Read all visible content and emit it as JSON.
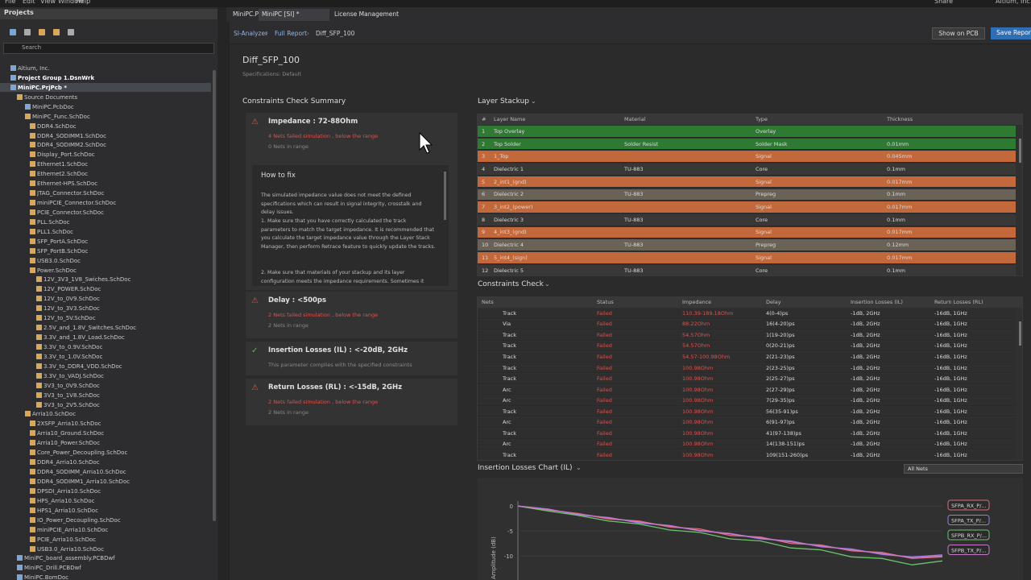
{
  "menu": [
    "File",
    "Edit",
    "View",
    "Window",
    "Help"
  ],
  "top_right": {
    "share": "Share",
    "account": "Altium, Inc."
  },
  "projects": {
    "title": "Projects",
    "search": "Search",
    "tree": [
      {
        "label": "Altium, Inc.",
        "level": 0
      },
      {
        "label": "Project Group 1.DsnWrk",
        "level": 0,
        "bold": true
      },
      {
        "label": "MiniPC.PrjPcb *",
        "level": 1,
        "bold": true,
        "selected": true
      },
      {
        "label": "Source Documents",
        "level": 2
      },
      {
        "label": "MiniPC.PcbDoc",
        "level": 3
      },
      {
        "label": "MiniPC_Func.SchDoc",
        "level": 3
      },
      {
        "label": "DDR4.SchDoc",
        "level": 4
      },
      {
        "label": "DDR4_SODIMM1.SchDoc",
        "level": 4
      },
      {
        "label": "DDR4_SODIMM2.SchDoc",
        "level": 4
      },
      {
        "label": "Display_Port.SchDoc",
        "level": 4
      },
      {
        "label": "Ethernet1.SchDoc",
        "level": 4
      },
      {
        "label": "Ethernet2.SchDoc",
        "level": 4
      },
      {
        "label": "Ethernet-HPS.SchDoc",
        "level": 4
      },
      {
        "label": "JTAG_Connector.SchDoc",
        "level": 4
      },
      {
        "label": "miniPCIE_Connector.SchDoc",
        "level": 4
      },
      {
        "label": "PCIE_Connector.SchDoc",
        "level": 4
      },
      {
        "label": "PLL.SchDoc",
        "level": 4
      },
      {
        "label": "PLL1.SchDoc",
        "level": 4
      },
      {
        "label": "SFP_PortA.SchDoc",
        "level": 4
      },
      {
        "label": "SFP_PortB.SchDoc",
        "level": 4
      },
      {
        "label": "USB3.0.SchDoc",
        "level": 4
      },
      {
        "label": "Power.SchDoc",
        "level": 4
      },
      {
        "label": "12V_3V3_1V8_Swiches.SchDoc",
        "level": 5
      },
      {
        "label": "12V_POWER.SchDoc",
        "level": 5
      },
      {
        "label": "12V_to_0V9.SchDoc",
        "level": 5
      },
      {
        "label": "12V_to_3V3.SchDoc",
        "level": 5
      },
      {
        "label": "12V_to_5V.SchDoc",
        "level": 5
      },
      {
        "label": "2.5V_and_1.8V_Switches.SchDoc",
        "level": 5
      },
      {
        "label": "3.3V_and_1.8V_Load.SchDoc",
        "level": 5
      },
      {
        "label": "3.3V_to_0.9V.SchDoc",
        "level": 5
      },
      {
        "label": "3.3V_to_1.0V.SchDoc",
        "level": 5
      },
      {
        "label": "3.3V_to_DDR4_VDD.SchDoc",
        "level": 5
      },
      {
        "label": "3.3V_to_VADJ.SchDoc",
        "level": 5
      },
      {
        "label": "3V3_to_0V9.SchDoc",
        "level": 5
      },
      {
        "label": "3V3_to_1V8.SchDoc",
        "level": 5
      },
      {
        "label": "3V3_to_2V5.SchDoc",
        "level": 5
      },
      {
        "label": "Arria10.SchDoc",
        "level": 3
      },
      {
        "label": "2XSFP_Arria10.SchDoc",
        "level": 4
      },
      {
        "label": "Arria10_Ground.SchDoc",
        "level": 4
      },
      {
        "label": "Arria10_Power.SchDoc",
        "level": 4
      },
      {
        "label": "Core_Power_Decoupling.SchDoc",
        "level": 4
      },
      {
        "label": "DDR4_Arria10.SchDoc",
        "level": 4
      },
      {
        "label": "DDR4_SODIMM_Arria10.SchDoc",
        "level": 4
      },
      {
        "label": "DDR4_SODIMM1_Arria10.SchDoc",
        "level": 4
      },
      {
        "label": "DPSDI_Arria10.SchDoc",
        "level": 4
      },
      {
        "label": "HPS_Arria10.SchDoc",
        "level": 4
      },
      {
        "label": "HPS1_Arria10.SchDoc",
        "level": 4
      },
      {
        "label": "IO_Power_Decoupling.SchDoc",
        "level": 4
      },
      {
        "label": "miniPCIE_Arria10.SchDoc",
        "level": 4
      },
      {
        "label": "PCIE_Arria10.SchDoc",
        "level": 4
      },
      {
        "label": "USB3.0_Arria10.SchDoc",
        "level": 4
      },
      {
        "label": "MiniPC_board_assembly.PCBDwf",
        "level": 2
      },
      {
        "label": "MiniPC_Drill.PCBDwf",
        "level": 2
      },
      {
        "label": "MiniPC.BomDoc",
        "level": 2
      }
    ]
  },
  "tabs": [
    "MiniPC.PcbDoc",
    "MiniPC [SI] *",
    "License Management"
  ],
  "breadcrumb": [
    "SI-Analyzer",
    "Full Report",
    "Diff_SFP_100"
  ],
  "buttons": {
    "show": "Show on PCB",
    "save": "Save Report"
  },
  "report": {
    "title": "Diff_SFP_100",
    "spec": "Specifications: Default"
  },
  "summary": {
    "title": "Constraints Check Summary",
    "items": [
      {
        "name": "Impedance : 72-88Ohm",
        "ok": false,
        "lines": [
          "4 Nets failed simulation , below the range",
          "0 Nets in range"
        ]
      },
      {
        "name": "Delay : <500ps",
        "ok": false,
        "lines": [
          "2 Nets failed simulation , below the range",
          "2 Nets in range"
        ]
      },
      {
        "name": "Insertion Losses (IL) : <-20dB, 2GHz",
        "ok": true,
        "lines": [
          "This parameter complies with the specified constraints"
        ]
      },
      {
        "name": "Return Losses (RL) : <-15dB, 2GHz",
        "ok": false,
        "lines": [
          "2 Nets failed simulation , below the range",
          "2 Nets in range"
        ]
      }
    ],
    "how_to_fix": {
      "title": "How to fix",
      "paragraphs": [
        "The simulated impedance value does not meet the defined specifications which can result in signal integrity, crosstalk and delay issues.",
        "1. Make sure that you have correctly calculated the track parameters to match the target impedance. It is recommended that you calculate the target impedance value through the Layer Stack Manager, then perform Retrace feature to quickly update the tracks.",
        "2. Make sure that materials of your stackup and its layer configuration meets the impedance requirements. Sometimes it"
      ]
    }
  },
  "layer_stackup": {
    "title": "Layer Stackup",
    "columns": [
      "#",
      "Layer Name",
      "Material",
      "Type",
      "Thickness"
    ],
    "rows": [
      [
        "1",
        "Top Overlay",
        null,
        "Overlay",
        null
      ],
      [
        "2",
        "Top Solder",
        "Solder Resist",
        "Solder Mask",
        "0.01mm"
      ],
      [
        "3",
        "1_Top",
        null,
        "Signal",
        "0.045mm"
      ],
      [
        "4",
        "Dielectric 1",
        "TU-883",
        "Core",
        "0.1mm"
      ],
      [
        "5",
        "2_int1_(gnd)",
        null,
        "Signal",
        "0.017mm"
      ],
      [
        "6",
        "Dielectric 2",
        "TU-883",
        "Prepreg",
        "0.1mm"
      ],
      [
        "7",
        "3_int2_(power)",
        null,
        "Signal",
        "0.017mm"
      ],
      [
        "8",
        "Dielectric 3",
        "TU-883",
        "Core",
        "0.1mm"
      ],
      [
        "9",
        "4_int3_(gnd)",
        null,
        "Signal",
        "0.017mm"
      ],
      [
        "10",
        "Dielectric 4",
        "TU-883",
        "Prepreg",
        "0.12mm"
      ],
      [
        "11",
        "5_int4_(sign)",
        null,
        "Signal",
        "0.017mm"
      ],
      [
        "12",
        "Dielectric 5",
        "TU-883",
        "Core",
        "0.1mm"
      ]
    ]
  },
  "constraints": {
    "title": "Constraints Check",
    "columns": [
      "Nets",
      "Status",
      "Impedance",
      "Delay",
      "Insertion Losses (IL)",
      "Return Losses (RL)"
    ],
    "rows": [
      [
        "Track",
        "Failed",
        "110.39-189.18Ohm",
        "4(0-4)ps",
        "-1dB, 2GHz",
        "-16dB, 1GHz"
      ],
      [
        "Via",
        "Failed",
        "88.22Ohm",
        "16(4-20)ps",
        "-1dB, 2GHz",
        "-16dB, 1GHz"
      ],
      [
        "Track",
        "Failed",
        "54.57Ohm",
        "1(19-20)ps",
        "-1dB, 2GHz",
        "-16dB, 1GHz"
      ],
      [
        "Track",
        "Failed",
        "54.57Ohm",
        "0(20-21)ps",
        "-1dB, 2GHz",
        "-16dB, 1GHz"
      ],
      [
        "Track",
        "Failed",
        "54.57-100.98Ohm",
        "2(21-23)ps",
        "-1dB, 2GHz",
        "-16dB, 1GHz"
      ],
      [
        "Track",
        "Failed",
        "100.98Ohm",
        "2(23-25)ps",
        "-1dB, 2GHz",
        "-16dB, 1GHz"
      ],
      [
        "Track",
        "Failed",
        "100.98Ohm",
        "2(25-27)ps",
        "-1dB, 2GHz",
        "-16dB, 1GHz"
      ],
      [
        "Arc",
        "Failed",
        "100.98Ohm",
        "2(27-29)ps",
        "-1dB, 2GHz",
        "-16dB, 1GHz"
      ],
      [
        "Arc",
        "Failed",
        "100.98Ohm",
        "7(29-35)ps",
        "-1dB, 2GHz",
        "-16dB, 1GHz"
      ],
      [
        "Track",
        "Failed",
        "100.98Ohm",
        "56(35-91)ps",
        "-1dB, 2GHz",
        "-16dB, 1GHz"
      ],
      [
        "Arc",
        "Failed",
        "100.98Ohm",
        "6(91-97)ps",
        "-1dB, 2GHz",
        "-16dB, 1GHz"
      ],
      [
        "Track",
        "Failed",
        "100.98Ohm",
        "41(97-138)ps",
        "-1dB, 2GHz",
        "-16dB, 1GHz"
      ],
      [
        "Arc",
        "Failed",
        "100.98Ohm",
        "14(138-151)ps",
        "-1dB, 2GHz",
        "-16dB, 1GHz"
      ],
      [
        "Track",
        "Failed",
        "100.98Ohm",
        "109(151-260)ps",
        "-1dB, 2GHz",
        "-16dB, 1GHz"
      ]
    ]
  },
  "chart": {
    "type": "line",
    "title": "Insertion Losses Chart (IL)",
    "filter": "All Nets",
    "ylabel": "Amplitude (dB)",
    "ylim": [
      -15,
      1
    ],
    "yticks": [
      0,
      -5,
      -10
    ],
    "series": [
      {
        "name": "SFPA_RX_P/...",
        "color": "#e06a78",
        "values": [
          0,
          -0.8,
          -1.5,
          -2.6,
          -3.0,
          -4.2,
          -4.6,
          -5.9,
          -6.2,
          -7.5,
          -7.8,
          -9.0,
          -9.3,
          -10.5,
          -10.2
        ]
      },
      {
        "name": "SFPA_TX_P/...",
        "color": "#9a7ae6",
        "values": [
          0,
          -0.6,
          -1.8,
          -2.3,
          -3.4,
          -3.9,
          -5.0,
          -5.5,
          -6.6,
          -7.0,
          -8.2,
          -8.6,
          -9.7,
          -10.2,
          -9.8
        ]
      },
      {
        "name": "SFPB_RX_P/...",
        "color": "#6cc36a",
        "values": [
          0,
          -1.0,
          -1.9,
          -3.0,
          -3.6,
          -4.8,
          -5.3,
          -6.6,
          -7.0,
          -8.4,
          -8.8,
          -10.2,
          -10.5,
          -11.8,
          -11.0
        ]
      },
      {
        "name": "SFPB_TX_P/...",
        "color": "#c77ac8",
        "values": [
          0,
          -0.7,
          -1.6,
          -2.4,
          -3.2,
          -4.0,
          -4.9,
          -5.6,
          -6.4,
          -7.2,
          -8.0,
          -8.8,
          -9.5,
          -10.4,
          -10.0
        ]
      }
    ]
  }
}
